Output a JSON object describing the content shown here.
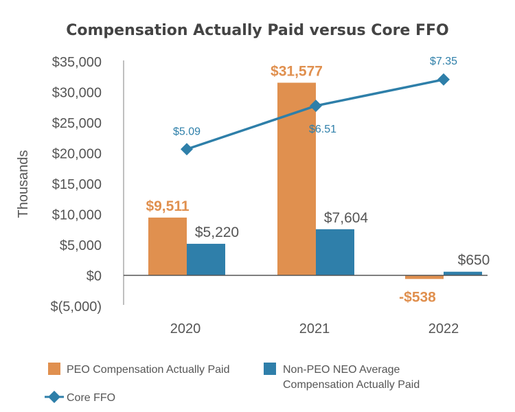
{
  "chart_data": {
    "type": "bar",
    "title": "Compensation Actually Paid versus Core FFO",
    "ylabel": "Thousands",
    "xlabel": "",
    "ylim": [
      -5000,
      35000
    ],
    "y_ticks": [
      35000,
      30000,
      25000,
      20000,
      15000,
      10000,
      5000,
      0,
      -5000
    ],
    "y_tick_labels": [
      "$35,000",
      "$30,000",
      "$25,000",
      "$20,000",
      "$15,000",
      "$10,000",
      "$5,000",
      "$0",
      "$(5,000)"
    ],
    "categories": [
      "2020",
      "2021",
      "2022"
    ],
    "series": [
      {
        "name": "PEO Compensation Actually Paid",
        "kind": "bar",
        "color": "#E0904F",
        "values": [
          9511,
          31577,
          -538
        ],
        "labels": [
          "$9,511",
          "$31,577",
          "-$538"
        ]
      },
      {
        "name": "Non-PEO NEO Average Compensation Actually Paid",
        "legend_lines": [
          "Non-PEO NEO Average",
          "Compensation Actually Paid"
        ],
        "kind": "bar",
        "color": "#2F7FAA",
        "values": [
          5220,
          7604,
          650
        ],
        "labels": [
          "$5,220",
          "$7,604",
          "$650"
        ]
      },
      {
        "name": "Core FFO",
        "kind": "line",
        "color": "#2E7FA9",
        "values": [
          5.09,
          6.51,
          7.35
        ],
        "labels": [
          "$5.09",
          "$6.51",
          "$7.35"
        ],
        "plotted_on_primary_scale": [
          20700,
          27800,
          32100
        ]
      }
    ],
    "legend": "bottom",
    "grid": false
  }
}
